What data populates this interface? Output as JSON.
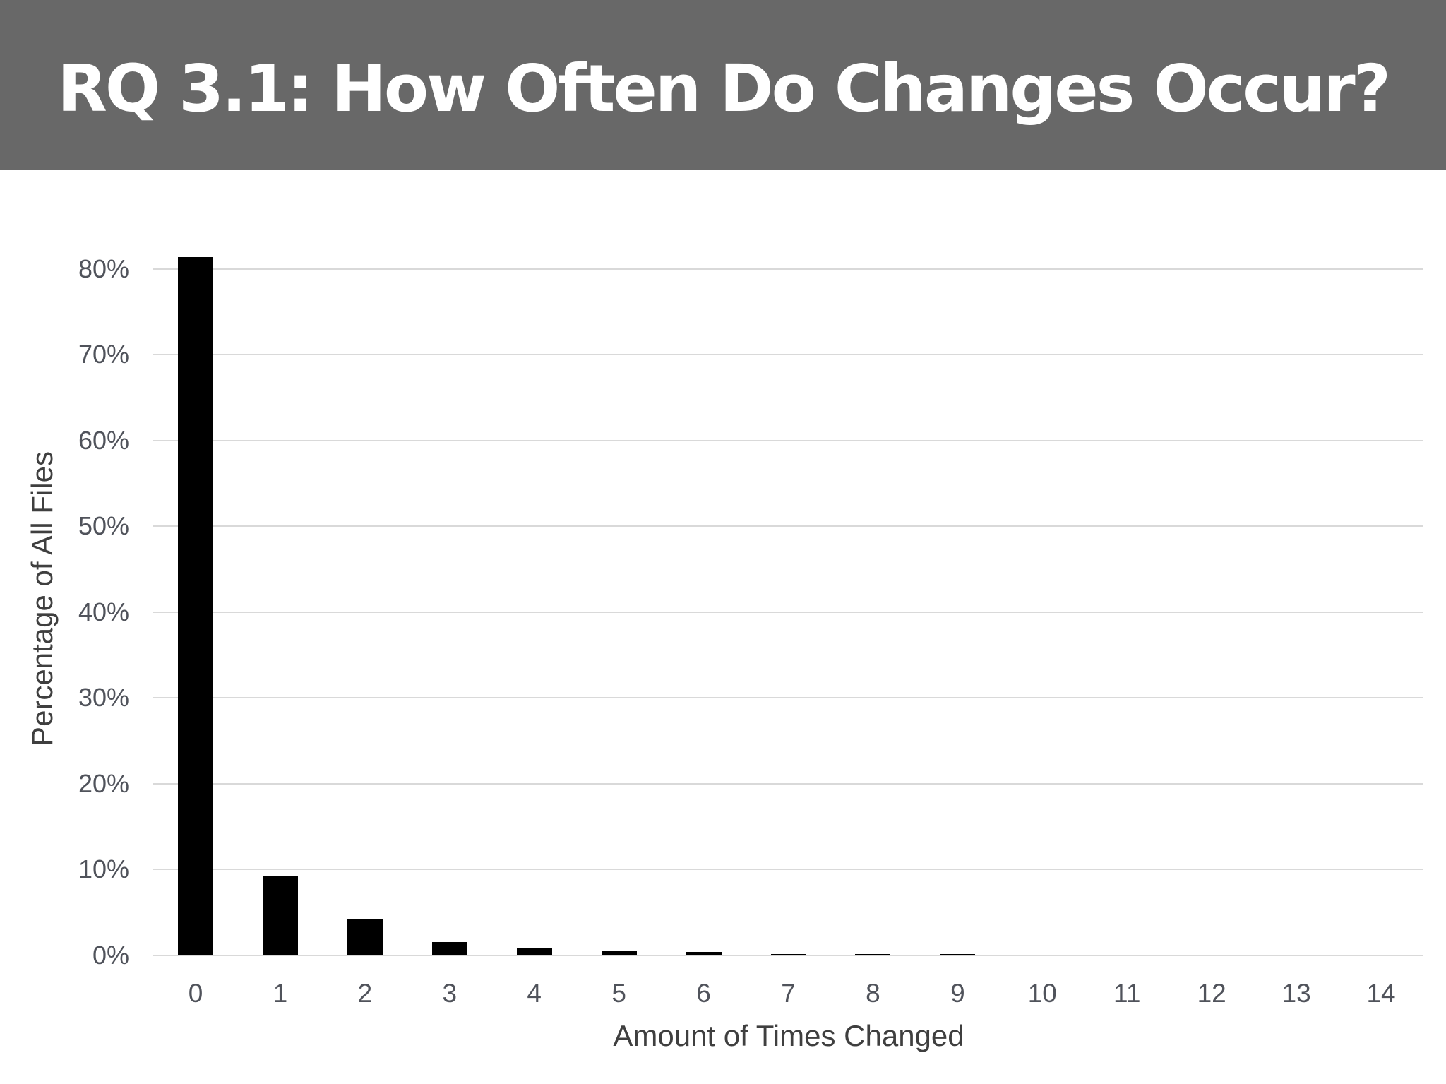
{
  "slide": {
    "title": "RQ 3.1: How Often Do Changes Occur?"
  },
  "colors": {
    "banner_background": "#686868",
    "title_text": "#ffffff",
    "bar": "#000000",
    "gridline": "#d9d9d9",
    "axis_line": "#d9d9d9",
    "tick_label": "#50535b",
    "axis_title": "#3f3f3f",
    "background": "#ffffff"
  },
  "chart_data": {
    "type": "bar",
    "title": "RQ 3.1: How Often Do Changes Occur?",
    "categories": [
      "0",
      "1",
      "2",
      "3",
      "4",
      "5",
      "6",
      "7",
      "8",
      "9",
      "10",
      "11",
      "12",
      "13",
      "14"
    ],
    "values": [
      81.4,
      9.3,
      4.3,
      1.6,
      0.9,
      0.6,
      0.4,
      0.2,
      0.2,
      0.2,
      0,
      0,
      0,
      0,
      0
    ],
    "xlabel": "Amount of Times Changed",
    "ylabel": "Percentage of All Files",
    "ylim": [
      0,
      80
    ],
    "ytick_step": 10,
    "ytick_labels": [
      "0%",
      "10%",
      "20%",
      "30%",
      "40%",
      "50%",
      "60%",
      "70%",
      "80%"
    ],
    "grid": "horizontal",
    "legend": "none",
    "bar_color": "#000000"
  }
}
